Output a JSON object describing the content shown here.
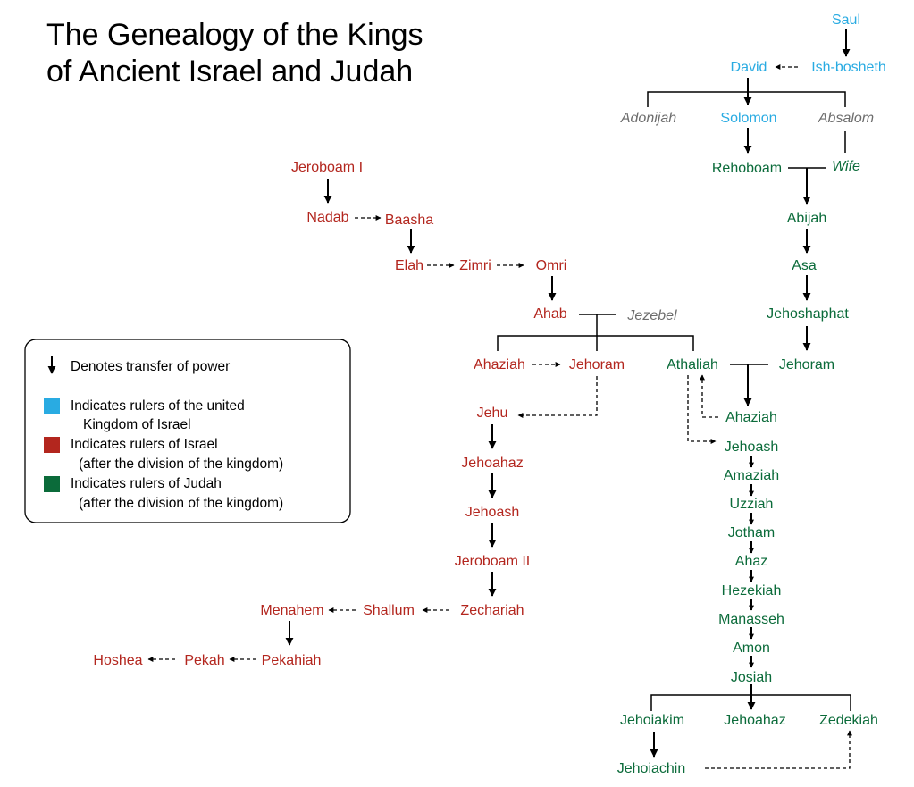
{
  "title": [
    "The Genealogy of the Kings",
    "of Ancient Israel and Judah"
  ],
  "colors": {
    "united": "#29abe2",
    "israel": "#b3261e",
    "judah": "#0b6b3a",
    "other": "#6d6d6d",
    "line": "#000000"
  },
  "legend": {
    "arrow": "Denotes transfer of power",
    "united": [
      "Indicates rulers of the united",
      "Kingdom of Israel"
    ],
    "israel": [
      "Indicates rulers of Israel",
      "(after the division of the kingdom)"
    ],
    "judah": [
      "Indicates rulers of Judah",
      "(after the division of the kingdom)"
    ]
  },
  "people": {
    "saul": {
      "label": "Saul",
      "group": "united"
    },
    "david": {
      "label": "David",
      "group": "united"
    },
    "ishbosheth": {
      "label": "Ish-bosheth",
      "group": "united"
    },
    "adonijah": {
      "label": "Adonijah",
      "group": "other"
    },
    "solomon": {
      "label": "Solomon",
      "group": "united"
    },
    "absalom": {
      "label": "Absalom",
      "group": "other"
    },
    "rehoboam": {
      "label": "Rehoboam",
      "group": "judah"
    },
    "wife": {
      "label": "Wife",
      "group": "judah"
    },
    "abijah": {
      "label": "Abijah",
      "group": "judah"
    },
    "asa": {
      "label": "Asa",
      "group": "judah"
    },
    "jehoshaphat": {
      "label": "Jehoshaphat",
      "group": "judah"
    },
    "jehoram_j": {
      "label": "Jehoram",
      "group": "judah"
    },
    "athaliah": {
      "label": "Athaliah",
      "group": "judah"
    },
    "ahaziah_j": {
      "label": "Ahaziah",
      "group": "judah"
    },
    "jehoash_j": {
      "label": "Jehoash",
      "group": "judah"
    },
    "amaziah": {
      "label": "Amaziah",
      "group": "judah"
    },
    "uzziah": {
      "label": "Uzziah",
      "group": "judah"
    },
    "jotham": {
      "label": "Jotham",
      "group": "judah"
    },
    "ahaz": {
      "label": "Ahaz",
      "group": "judah"
    },
    "hezekiah": {
      "label": "Hezekiah",
      "group": "judah"
    },
    "manasseh": {
      "label": "Manasseh",
      "group": "judah"
    },
    "amon": {
      "label": "Amon",
      "group": "judah"
    },
    "josiah": {
      "label": "Josiah",
      "group": "judah"
    },
    "jehoiakim": {
      "label": "Jehoiakim",
      "group": "judah"
    },
    "jehoahaz_j": {
      "label": "Jehoahaz",
      "group": "judah"
    },
    "zedekiah": {
      "label": "Zedekiah",
      "group": "judah"
    },
    "jehoiachin": {
      "label": "Jehoiachin",
      "group": "judah"
    },
    "jeroboam1": {
      "label": "Jeroboam I",
      "group": "israel"
    },
    "nadab": {
      "label": "Nadab",
      "group": "israel"
    },
    "baasha": {
      "label": "Baasha",
      "group": "israel"
    },
    "elah": {
      "label": "Elah",
      "group": "israel"
    },
    "zimri": {
      "label": "Zimri",
      "group": "israel"
    },
    "omri": {
      "label": "Omri",
      "group": "israel"
    },
    "ahab": {
      "label": "Ahab",
      "group": "israel"
    },
    "jezebel": {
      "label": "Jezebel",
      "group": "other"
    },
    "ahaziah_i": {
      "label": "Ahaziah",
      "group": "israel"
    },
    "jehoram_i": {
      "label": "Jehoram",
      "group": "israel"
    },
    "jehu": {
      "label": "Jehu",
      "group": "israel"
    },
    "jehoahaz_i": {
      "label": "Jehoahaz",
      "group": "israel"
    },
    "jehoash_i": {
      "label": "Jehoash",
      "group": "israel"
    },
    "jeroboam2": {
      "label": "Jeroboam II",
      "group": "israel"
    },
    "zechariah": {
      "label": "Zechariah",
      "group": "israel"
    },
    "shallum": {
      "label": "Shallum",
      "group": "israel"
    },
    "menahem": {
      "label": "Menahem",
      "group": "israel"
    },
    "pekahiah": {
      "label": "Pekahiah",
      "group": "israel"
    },
    "pekah": {
      "label": "Pekah",
      "group": "israel"
    },
    "hoshea": {
      "label": "Hoshea",
      "group": "israel"
    }
  }
}
